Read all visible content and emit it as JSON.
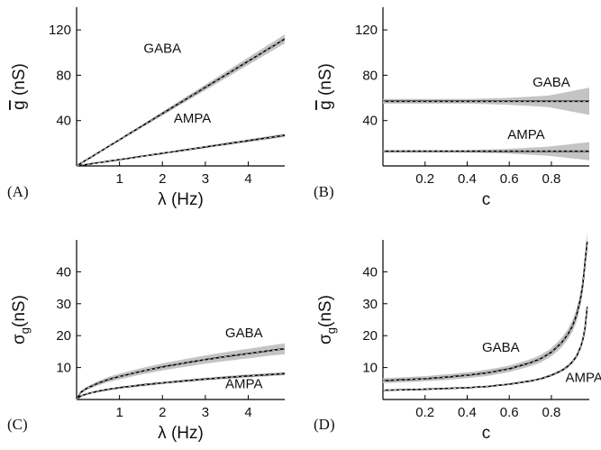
{
  "chart_data": [
    {
      "panel": "(A)",
      "type": "line",
      "xlabel": "λ (Hz)",
      "ylabel": {
        "main": "g",
        "unit": "(nS)",
        "overline": true
      },
      "xlim": [
        0,
        4.85
      ],
      "ylim": [
        0,
        140
      ],
      "xticks": [
        1,
        2,
        3,
        4
      ],
      "yticks": [
        40,
        80,
        120
      ],
      "xtick_labels": [
        "1",
        "2",
        "3",
        "4"
      ],
      "ytick_labels": [
        "40",
        "80",
        "120"
      ],
      "series": [
        {
          "name": "GABA",
          "x": [
            0,
            4.85
          ],
          "y": [
            0,
            112
          ],
          "band": [
            0,
            4
          ]
        },
        {
          "name": "AMPA",
          "x": [
            0,
            4.85
          ],
          "y": [
            0,
            27
          ],
          "band": [
            0,
            1.5
          ]
        }
      ],
      "annotations": [
        {
          "text": "GABA",
          "x": 2.0,
          "y": 100
        },
        {
          "text": "AMPA",
          "x": 2.7,
          "y": 38
        }
      ]
    },
    {
      "panel": "(B)",
      "type": "line",
      "xlabel": "c",
      "ylabel": {
        "main": "g",
        "unit": "(nS)",
        "overline": true
      },
      "xlim": [
        0,
        0.98
      ],
      "ylim": [
        0,
        140
      ],
      "xticks": [
        0.2,
        0.4,
        0.6,
        0.8
      ],
      "yticks": [
        40,
        80,
        120
      ],
      "xtick_labels": [
        "0.2",
        "0.4",
        "0.6",
        "0.8"
      ],
      "ytick_labels": [
        "40",
        "80",
        "120"
      ],
      "series": [
        {
          "name": "GABA",
          "x": [
            0,
            0.98
          ],
          "y": [
            57,
            57
          ],
          "band": [
            2,
            2,
            2,
            3,
            5,
            12
          ]
        },
        {
          "name": "AMPA",
          "x": [
            0,
            0.98
          ],
          "y": [
            13,
            13
          ],
          "band": [
            1,
            1,
            1,
            2,
            4,
            8
          ]
        }
      ],
      "annotations": [
        {
          "text": "GABA",
          "x": 0.8,
          "y": 70
        },
        {
          "text": "AMPA",
          "x": 0.68,
          "y": 24
        }
      ]
    },
    {
      "panel": "(C)",
      "type": "line",
      "xlabel": "λ (Hz)",
      "ylabel": {
        "main": "σ",
        "sub": "g",
        "unit": "(nS)"
      },
      "xlim": [
        0,
        4.85
      ],
      "ylim": [
        0,
        50
      ],
      "xticks": [
        1,
        2,
        3,
        4
      ],
      "yticks": [
        10,
        20,
        30,
        40
      ],
      "xtick_labels": [
        "1",
        "2",
        "3",
        "4"
      ],
      "ytick_labels": [
        "10",
        "20",
        "30",
        "40"
      ],
      "series": [
        {
          "name": "GABA",
          "x": [
            0,
            0.1,
            0.25,
            0.5,
            0.75,
            1,
            1.5,
            2,
            2.5,
            3,
            3.5,
            4,
            4.5,
            4.85
          ],
          "y": [
            0,
            2.3,
            3.6,
            5.1,
            6.3,
            7.2,
            8.8,
            10.2,
            11.4,
            12.5,
            13.5,
            14.4,
            15.3,
            15.9
          ],
          "band": [
            0,
            0.4,
            0.5,
            0.7,
            0.8,
            0.9,
            1,
            1.1,
            1.2,
            1.3,
            1.4,
            1.5,
            1.6,
            1.7
          ]
        },
        {
          "name": "AMPA",
          "x": [
            0,
            0.1,
            0.25,
            0.5,
            0.75,
            1,
            1.5,
            2,
            2.5,
            3,
            3.5,
            4,
            4.5,
            4.85
          ],
          "y": [
            0,
            1.1,
            1.8,
            2.6,
            3.2,
            3.7,
            4.5,
            5.2,
            5.8,
            6.4,
            6.9,
            7.4,
            7.8,
            8.1
          ],
          "band": [
            0,
            0.2,
            0.2,
            0.3,
            0.3,
            0.3,
            0.4,
            0.4,
            0.4,
            0.4,
            0.5,
            0.5,
            0.5,
            0.5
          ]
        }
      ],
      "annotations": [
        {
          "text": "GABA",
          "x": 3.9,
          "y": 19.5
        },
        {
          "text": "AMPA",
          "x": 3.9,
          "y": 3.5
        }
      ]
    },
    {
      "panel": "(D)",
      "type": "line",
      "xlabel": "c",
      "ylabel": {
        "main": "σ",
        "sub": "g",
        "unit": "(nS)"
      },
      "xlim": [
        0,
        0.98
      ],
      "ylim": [
        0,
        50
      ],
      "xticks": [
        0.2,
        0.4,
        0.6,
        0.8
      ],
      "yticks": [
        10,
        20,
        30,
        40
      ],
      "xtick_labels": [
        "0.2",
        "0.4",
        "0.6",
        "0.8"
      ],
      "ytick_labels": [
        "10",
        "20",
        "30",
        "40"
      ],
      "series": [
        {
          "name": "GABA",
          "x": [
            0,
            0.1,
            0.2,
            0.3,
            0.4,
            0.5,
            0.6,
            0.7,
            0.75,
            0.8,
            0.85,
            0.88,
            0.9,
            0.92,
            0.94,
            0.95,
            0.96,
            0.97
          ],
          "y": [
            5.9,
            6.2,
            6.5,
            7.0,
            7.6,
            8.4,
            9.6,
            11.5,
            12.8,
            14.8,
            17.9,
            20.6,
            23,
            26.5,
            32,
            36.5,
            43,
            49.5
          ],
          "band": [
            0.8,
            0.8,
            0.8,
            0.9,
            0.9,
            1,
            1,
            1.1,
            1.2,
            1.3,
            1.5,
            1.6,
            1.8,
            2,
            2.2,
            2.4,
            2.6,
            3
          ]
        },
        {
          "name": "AMPA",
          "x": [
            0,
            0.2,
            0.4,
            0.5,
            0.6,
            0.7,
            0.75,
            0.8,
            0.85,
            0.88,
            0.9,
            0.92,
            0.94,
            0.95,
            0.96,
            0.97
          ],
          "y": [
            2.9,
            3.2,
            3.7,
            4.1,
            4.8,
            5.8,
            6.5,
            7.6,
            9.1,
            10.5,
            11.8,
            13.6,
            16.6,
            18.9,
            22.5,
            29
          ],
          "band": [
            0.2,
            0.2,
            0.2,
            0.2,
            0.3,
            0.3,
            0.3,
            0.4,
            0.4,
            0.5,
            0.5,
            0.6,
            0.7,
            0.8,
            0.9,
            1
          ]
        }
      ],
      "annotations": [
        {
          "text": "GABA",
          "x": 0.56,
          "y": 15
        },
        {
          "text": "AMPA",
          "x": 0.955,
          "y": 5.5
        }
      ]
    }
  ]
}
